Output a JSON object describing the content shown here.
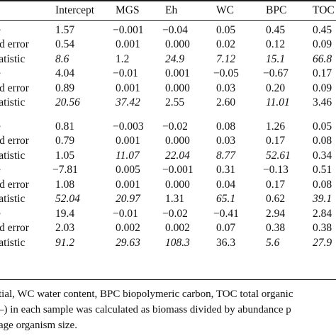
{
  "header": [
    "Intercept",
    "MGS",
    "Eh",
    "WC",
    "BPC",
    "TOC"
  ],
  "rows": [
    {
      "label": "e",
      "values": [
        "1.57",
        "−0.001",
        "−0.04",
        "0.05",
        "0.45",
        "0.45"
      ],
      "italic": false
    },
    {
      "label": "rd error",
      "values": [
        "0.54",
        "0.001",
        "0.000",
        "0.02",
        "0.12",
        "0.09"
      ],
      "italic": false
    },
    {
      "label": "tatistic",
      "values": [
        "8.6",
        "1.2",
        "24.9",
        "7.12",
        "15.1",
        "66.8"
      ],
      "italic": true
    },
    {
      "label": "e",
      "values": [
        "4.04",
        "−0.01",
        "0.001",
        "−0.05",
        "−0.67",
        "0.17"
      ],
      "italic": false
    },
    {
      "label": "rd error",
      "values": [
        "0.89",
        "0.001",
        "0.000",
        "0.03",
        "0.20",
        "0.09"
      ],
      "italic": false
    },
    {
      "label": "tatistic",
      "values": [
        "20.56",
        "37.42",
        "2.55",
        "2.60",
        "11.01",
        "3.46"
      ],
      "italic": true
    },
    {
      "label": "e",
      "values": [
        "0.81",
        "−0.003",
        "−0.02",
        "0.08",
        "1.26",
        "0.05"
      ],
      "italic": false
    },
    {
      "label": "rd error",
      "values": [
        "0.79",
        "0.001",
        "0.000",
        "0.03",
        "0.17",
        "0.08"
      ],
      "italic": false
    },
    {
      "label": "tatistic",
      "values": [
        "1.05",
        "11.07",
        "22.04",
        "8.77",
        "52.61",
        "0.34"
      ],
      "italic": true
    },
    {
      "label": "e",
      "values": [
        "−7.81",
        "0.005",
        "−0.001",
        "0.31",
        "−0.13",
        "0.51"
      ],
      "italic": false
    },
    {
      "label": "rd error",
      "values": [
        "1.08",
        "0.001",
        "0.000",
        "0.04",
        "0.17",
        "0.08"
      ],
      "italic": false
    },
    {
      "label": "tatistic",
      "values": [
        "52.04",
        "20.97",
        "1.31",
        "65.1",
        "0.62",
        "39.1"
      ],
      "italic": true
    },
    {
      "label": "e",
      "values": [
        "19.4",
        "−0.01",
        "−0.02",
        "−0.41",
        "2.94",
        "2.84"
      ],
      "italic": false
    },
    {
      "label": "rd error",
      "values": [
        "2.03",
        "0.002",
        "0.002",
        "0.07",
        "0.38",
        "0.38"
      ],
      "italic": false
    },
    {
      "label": "tatistic",
      "values": [
        "91.2",
        "29.63",
        "108.3",
        "36.3",
        "5.6",
        "27.9"
      ],
      "italic": true
    }
  ],
  "footnotes": [
    "tial, WC water content, BPC biopolymeric carbon, TOC total organic",
    "–) in each sample was calculated as biomass divided by abundance p",
    "age organism size."
  ]
}
